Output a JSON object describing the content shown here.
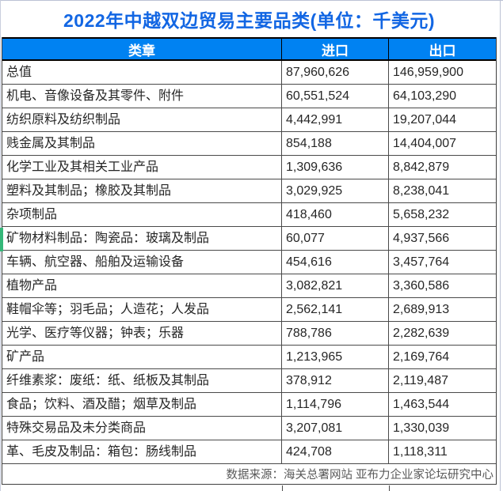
{
  "title": "2022年中越双边贸易主要品类(单位：千美元)",
  "table": {
    "columns": [
      "类章",
      "进口",
      "出口"
    ],
    "rows": [
      {
        "category": "总值",
        "import": "87,960,626",
        "export": "146,959,900"
      },
      {
        "category": "机电、音像设备及其零件、附件",
        "import": "60,551,524",
        "export": "64,103,290"
      },
      {
        "category": "纺织原料及纺织制品",
        "import": "4,442,991",
        "export": "19,207,044"
      },
      {
        "category": "贱金属及其制品",
        "import": "854,188",
        "export": "14,404,007"
      },
      {
        "category": "化学工业及其相关工业产品",
        "import": "1,309,636",
        "export": "8,842,879"
      },
      {
        "category": "塑料及其制品；橡胶及其制品",
        "import": "3,029,925",
        "export": "8,238,041"
      },
      {
        "category": "杂项制品",
        "import": "418,460",
        "export": "5,658,232"
      },
      {
        "category": "矿物材料制品：陶瓷品：玻璃及制品",
        "import": "60,077",
        "export": "4,937,566"
      },
      {
        "category": "车辆、航空器、船舶及运输设备",
        "import": "454,616",
        "export": "3,457,764"
      },
      {
        "category": "植物产品",
        "import": "3,082,821",
        "export": "3,360,586"
      },
      {
        "category": "鞋帽伞等；羽毛品；人造花；人发品",
        "import": "2,562,141",
        "export": "2,689,913"
      },
      {
        "category": "光学、医疗等仪器；钟表；乐器",
        "import": "788,786",
        "export": "2,282,639"
      },
      {
        "category": "矿产品",
        "import": "1,213,965",
        "export": "2,169,764"
      },
      {
        "category": "纤维素浆：废纸：纸、纸板及其制品",
        "import": "378,912",
        "export": "2,119,487"
      },
      {
        "category": "食品；饮料、酒及醋；烟草及制品",
        "import": "1,114,796",
        "export": "1,463,544"
      },
      {
        "category": "特殊交易品及未分类商品",
        "import": "3,207,081",
        "export": "1,330,039"
      },
      {
        "category": "革、毛皮及制品：箱包：肠线制品",
        "import": "424,708",
        "export": "1,118,311"
      }
    ]
  },
  "footer": {
    "source": "数据来源：海关总署网站 亚布力企业家论坛研究中心"
  },
  "colors": {
    "title_text": "#1266e3",
    "header_bg": "#0082f2",
    "header_text": "#ffffff",
    "body_text": "#262626",
    "source_text": "#595959",
    "row_border": "#4a4a4a",
    "header_border": "#000000",
    "gridline": "#bcc2d4",
    "accent_green": "#35b779"
  },
  "chart_data": {
    "type": "table",
    "title": "2022年中越双边贸易主要品类(单位：千美元)",
    "columns": [
      "类章",
      "进口",
      "出口"
    ],
    "categories": [
      "总值",
      "机电、音像设备及其零件、附件",
      "纺织原料及纺织制品",
      "贱金属及其制品",
      "化学工业及其相关工业产品",
      "塑料及其制品；橡胶及其制品",
      "杂项制品",
      "矿物材料制品：陶瓷品：玻璃及制品",
      "车辆、航空器、船舶及运输设备",
      "植物产品",
      "鞋帽伞等；羽毛品；人造花；人发品",
      "光学、医疗等仪器；钟表；乐器",
      "矿产品",
      "纤维素浆：废纸：纸、纸板及其制品",
      "食品；饮料、酒及醋；烟草及制品",
      "特殊交易品及未分类商品",
      "革、毛皮及制品：箱包：肠线制品"
    ],
    "series": [
      {
        "name": "进口",
        "values": [
          87960626,
          60551524,
          4442991,
          854188,
          1309636,
          3029925,
          418460,
          60077,
          454616,
          3082821,
          2562141,
          788786,
          1213965,
          378912,
          1114796,
          3207081,
          424708
        ]
      },
      {
        "name": "出口",
        "values": [
          146959900,
          64103290,
          19207044,
          14404007,
          8842879,
          8238041,
          5658232,
          4937566,
          3457764,
          3360586,
          2689913,
          2282639,
          2169764,
          2119487,
          1463544,
          1330039,
          1118311
        ]
      }
    ],
    "unit": "千美元",
    "source": "数据来源：海关总署网站 亚布力企业家论坛研究中心"
  }
}
